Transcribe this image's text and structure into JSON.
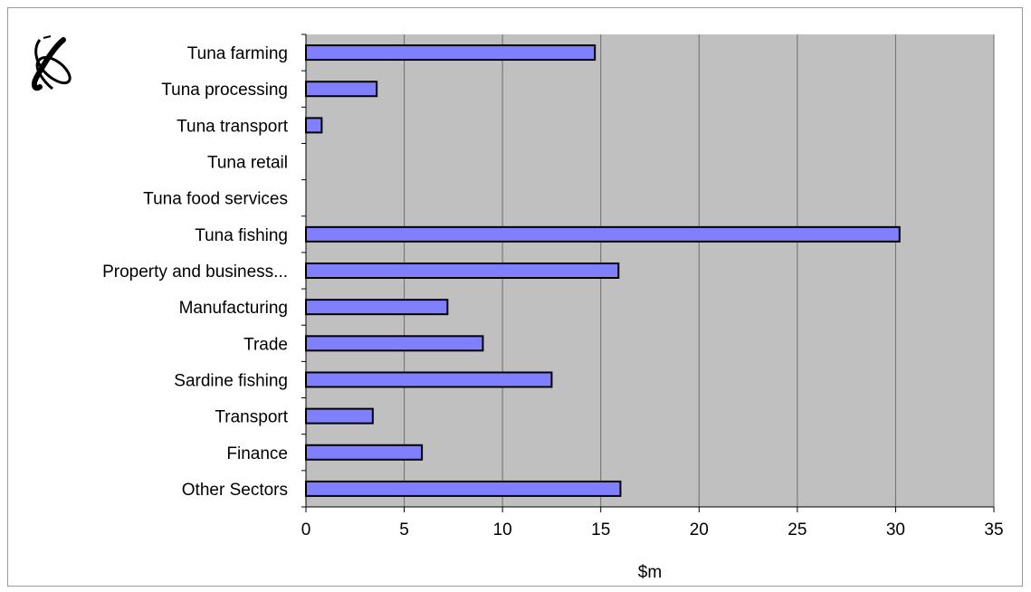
{
  "colors": {
    "plot_background": "#c0c0c0",
    "bar_fill": "#8080ff",
    "bar_stroke": "#000000",
    "gridline": "#6e6e6e"
  },
  "logo": {
    "icon": "orbit-ribbon-logo-icon"
  },
  "chart_data": {
    "type": "bar",
    "orientation": "horizontal",
    "categories": [
      "Tuna farming",
      "Tuna processing",
      "Tuna transport",
      "Tuna retail",
      "Tuna food services",
      "Tuna fishing",
      "Property and business...",
      "Manufacturing",
      "Trade",
      "Sardine fishing",
      "Transport",
      "Finance",
      "Other Sectors"
    ],
    "values": [
      14.7,
      3.6,
      0.8,
      0.0,
      0.0,
      30.2,
      15.9,
      7.2,
      9.0,
      12.5,
      3.4,
      5.9,
      16.0
    ],
    "title": "",
    "xlabel": "$m",
    "ylabel": "",
    "xlim": [
      0,
      35
    ],
    "xticks": [
      0,
      5,
      10,
      15,
      20,
      25,
      30,
      35
    ],
    "xtick_labels": [
      "0",
      "5",
      "10",
      "15",
      "20",
      "25",
      "30",
      "35"
    ],
    "grid": true,
    "legend": "none"
  }
}
